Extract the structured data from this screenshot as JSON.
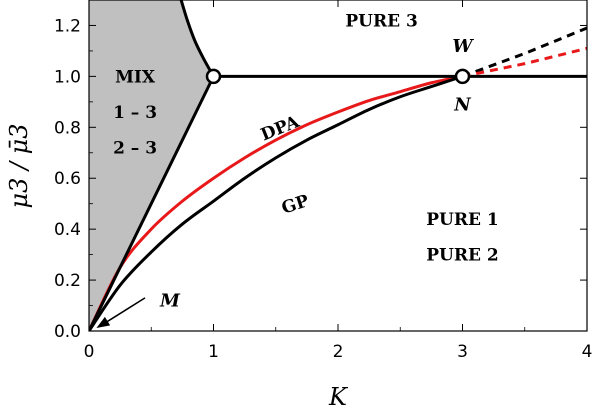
{
  "chart_data": {
    "type": "line",
    "xlabel": "K",
    "ylabel": "μ3 / μ̄3",
    "xlim": [
      0,
      4
    ],
    "ylim": [
      0,
      1.3
    ],
    "xticks": [
      0,
      1,
      2,
      3,
      4
    ],
    "yticks": [
      0.0,
      0.2,
      0.4,
      0.6,
      0.8,
      1.0,
      1.2
    ],
    "grid": false,
    "colors": {
      "gp": "#000000",
      "dpa": "#e8191a",
      "mix_region": "#c0c0c0"
    },
    "series": [
      {
        "name": "DPA",
        "x": [
          0,
          0.25,
          0.5,
          0.75,
          1.0,
          1.25,
          1.5,
          1.75,
          2.0,
          2.25,
          2.5,
          2.75,
          3.0
        ],
        "values": [
          0,
          0.25,
          0.4,
          0.51,
          0.6,
          0.68,
          0.75,
          0.81,
          0.86,
          0.905,
          0.94,
          0.975,
          1.0
        ]
      },
      {
        "name": "GP",
        "x": [
          0,
          0.25,
          0.5,
          0.75,
          1.0,
          1.25,
          1.5,
          1.75,
          2.0,
          2.25,
          2.5,
          2.75,
          3.0
        ],
        "values": [
          0,
          0.18,
          0.31,
          0.42,
          0.51,
          0.6,
          0.68,
          0.75,
          0.81,
          0.87,
          0.92,
          0.96,
          1.0
        ]
      },
      {
        "x": [
          0,
          0.25,
          0.5,
          0.75,
          1.0
        ],
        "values": [
          0,
          0.25,
          0.5,
          0.75,
          1.0
        ]
      },
      {
        "x": [
          1.0,
          0.92,
          0.85,
          0.79,
          0.74
        ],
        "values": [
          1.0,
          1.07,
          1.14,
          1.22,
          1.3
        ]
      },
      {
        "x": [
          1.0,
          4.0
        ],
        "values": [
          1.0,
          1.0
        ]
      },
      {
        "style": "dashed",
        "x": [
          3.0,
          3.5,
          4.0
        ],
        "values": [
          1.0,
          1.09,
          1.19
        ]
      },
      {
        "style": "dashed",
        "x": [
          3.0,
          3.5,
          4.0
        ],
        "values": [
          1.0,
          1.05,
          1.11
        ]
      }
    ],
    "points": [
      {
        "x": 1.0,
        "y": 1.0
      },
      {
        "x": 3.0,
        "y": 1.0
      }
    ],
    "annotations": [
      {
        "text": "PURE 3",
        "x": 2.35,
        "y": 1.22
      },
      {
        "text": "MIX",
        "x": 0.37,
        "y": 1.0
      },
      {
        "text": "1 – 3",
        "x": 0.37,
        "y": 0.86
      },
      {
        "text": "2 – 3",
        "x": 0.37,
        "y": 0.72
      },
      {
        "text": "DPA",
        "x": 1.55,
        "y": 0.8
      },
      {
        "text": "GP",
        "x": 1.67,
        "y": 0.5
      },
      {
        "text": "PURE 1",
        "x": 3.0,
        "y": 0.44
      },
      {
        "text": "PURE 2",
        "x": 3.0,
        "y": 0.3
      },
      {
        "text": "W",
        "x": 3.0,
        "y": 1.12
      },
      {
        "text": "N",
        "x": 3.0,
        "y": 0.89
      },
      {
        "text": "M",
        "x": 0.65,
        "y": 0.12
      }
    ]
  }
}
